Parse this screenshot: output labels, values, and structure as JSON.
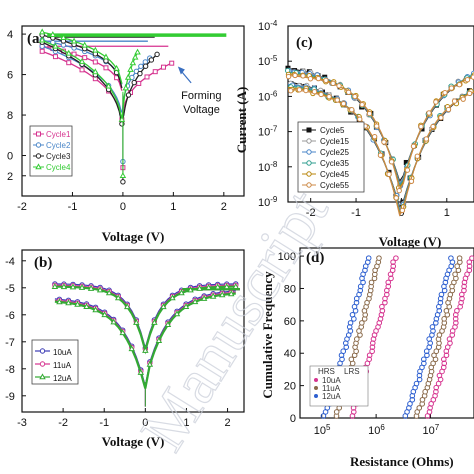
{
  "watermark": "Manuscript",
  "chart_data": [
    {
      "panel": "(a)",
      "type": "line",
      "xlabel": "Voltage (V)",
      "ylabel": "",
      "xlim": [
        -2,
        2.4
      ],
      "ylim": [
        -12,
        -3.6
      ],
      "xticks": [
        -2,
        -1,
        0,
        1,
        2
      ],
      "yticks": [
        {
          "v": -4,
          "t": "4"
        },
        {
          "v": -6,
          "t": "6"
        },
        {
          "v": -8,
          "t": "8"
        },
        {
          "v": -10,
          "t": "0"
        },
        {
          "v": -11,
          "t": "2"
        }
      ],
      "annotation": {
        "text": [
          "Forming",
          "Voltage"
        ],
        "at": [
          1.05,
          -5.5
        ],
        "text_at": [
          1.55,
          -7.3
        ]
      },
      "legend": {
        "placement": "bottom-left"
      },
      "series": [
        {
          "name": "Cycle1",
          "color": "#d6338f",
          "marker": "square",
          "vset": 1.0,
          "top": -4.6,
          "bot": -10.6
        },
        {
          "name": "Cycle2",
          "color": "#4a86c8",
          "marker": "circle",
          "vset": 0.55,
          "top": -4.35,
          "bot": -10.3
        },
        {
          "name": "Cycle3",
          "color": "#222222",
          "marker": "circle",
          "vset": 0.7,
          "top": -4.15,
          "bot": -11.3
        },
        {
          "name": "Cycle4",
          "color": "#33cc33",
          "marker": "triangle",
          "vset": 0.3,
          "top": -4.05,
          "bot": -11.0
        }
      ]
    },
    {
      "panel": "(c)",
      "type": "line",
      "xlabel": "Voltage (V)",
      "ylabel": "Current (A)",
      "xlim": [
        -2.5,
        1.6
      ],
      "ylim": [
        -9,
        -4
      ],
      "xticks": [
        -2,
        -1,
        0,
        1
      ],
      "yticks": [
        {
          "v": -4,
          "t": "10^-4"
        },
        {
          "v": -5,
          "t": "10^-5"
        },
        {
          "v": -6,
          "t": "10^-6"
        },
        {
          "v": -7,
          "t": "10^-7"
        },
        {
          "v": -8,
          "t": "10^-8"
        },
        {
          "v": -9,
          "t": "10^-9"
        }
      ],
      "legend": {
        "placement": "bottom-right"
      },
      "series": [
        {
          "name": "Cycle5",
          "color": "#111111",
          "marker": "square-filled"
        },
        {
          "name": "Cycle15",
          "color": "#999999",
          "marker": "circle"
        },
        {
          "name": "Cycle25",
          "color": "#4a86c8",
          "marker": "circle"
        },
        {
          "name": "Cycle35",
          "color": "#2f9e8f",
          "marker": "circle"
        },
        {
          "name": "Cycle45",
          "color": "#b8860b",
          "marker": "circle"
        },
        {
          "name": "Cycle55",
          "color": "#cc8844",
          "marker": "circle"
        }
      ]
    },
    {
      "panel": "(b)",
      "type": "line",
      "xlabel": "Voltage (V)",
      "ylabel": "",
      "xlim": [
        -3,
        2.4
      ],
      "ylim": [
        -9.6,
        -3.6
      ],
      "xticks": [
        -3,
        -2,
        -1,
        0,
        1,
        2
      ],
      "yticks": [
        {
          "v": -4,
          "t": "-4"
        },
        {
          "v": -5,
          "t": "-5"
        },
        {
          "v": -6,
          "t": "-6"
        },
        {
          "v": -7,
          "t": "-7"
        },
        {
          "v": -8,
          "t": "-8"
        },
        {
          "v": -9,
          "t": "-9"
        }
      ],
      "legend": {
        "placement": "bottom-left"
      },
      "series": [
        {
          "name": "10uA",
          "color": "#3b3bb5",
          "marker": "circle"
        },
        {
          "name": "11uA",
          "color": "#d6338f",
          "marker": "circle"
        },
        {
          "name": "12uA",
          "color": "#33aa33",
          "marker": "triangle"
        }
      ]
    },
    {
      "panel": "(d)",
      "type": "scatter",
      "xlabel": "Resistance (Ohms)",
      "ylabel": "Cumulative Frequency",
      "xlim": [
        4.6,
        7.8
      ],
      "ylim": [
        0,
        105
      ],
      "xticks": [
        {
          "v": 5,
          "t": "10^5"
        },
        {
          "v": 6,
          "t": "10^6"
        },
        {
          "v": 7,
          "t": "10^7"
        }
      ],
      "yticks": [
        0,
        20,
        40,
        60,
        80,
        100
      ],
      "legend": {
        "placement": "bottom-left",
        "header": [
          "HRS",
          "LRS"
        ],
        "entries": [
          "10uA",
          "11uA",
          "12uA"
        ]
      },
      "series": [
        {
          "name": "10uA",
          "state": "LRS",
          "color": "#2d5fd0",
          "start": 5.05,
          "end": 5.85
        },
        {
          "name": "11uA",
          "state": "LRS",
          "color": "#d6338f",
          "start": 5.55,
          "end": 6.35
        },
        {
          "name": "12uA",
          "state": "LRS",
          "color": "#8a6a4a",
          "start": 5.25,
          "end": 6.05
        },
        {
          "name": "10uA",
          "state": "HRS",
          "color": "#2d5fd0",
          "start": 6.55,
          "end": 7.4
        },
        {
          "name": "11uA",
          "state": "HRS",
          "color": "#d6338f",
          "start": 6.95,
          "end": 7.75
        },
        {
          "name": "12uA",
          "state": "HRS",
          "color": "#8a6a4a",
          "start": 6.75,
          "end": 7.55
        }
      ]
    }
  ]
}
